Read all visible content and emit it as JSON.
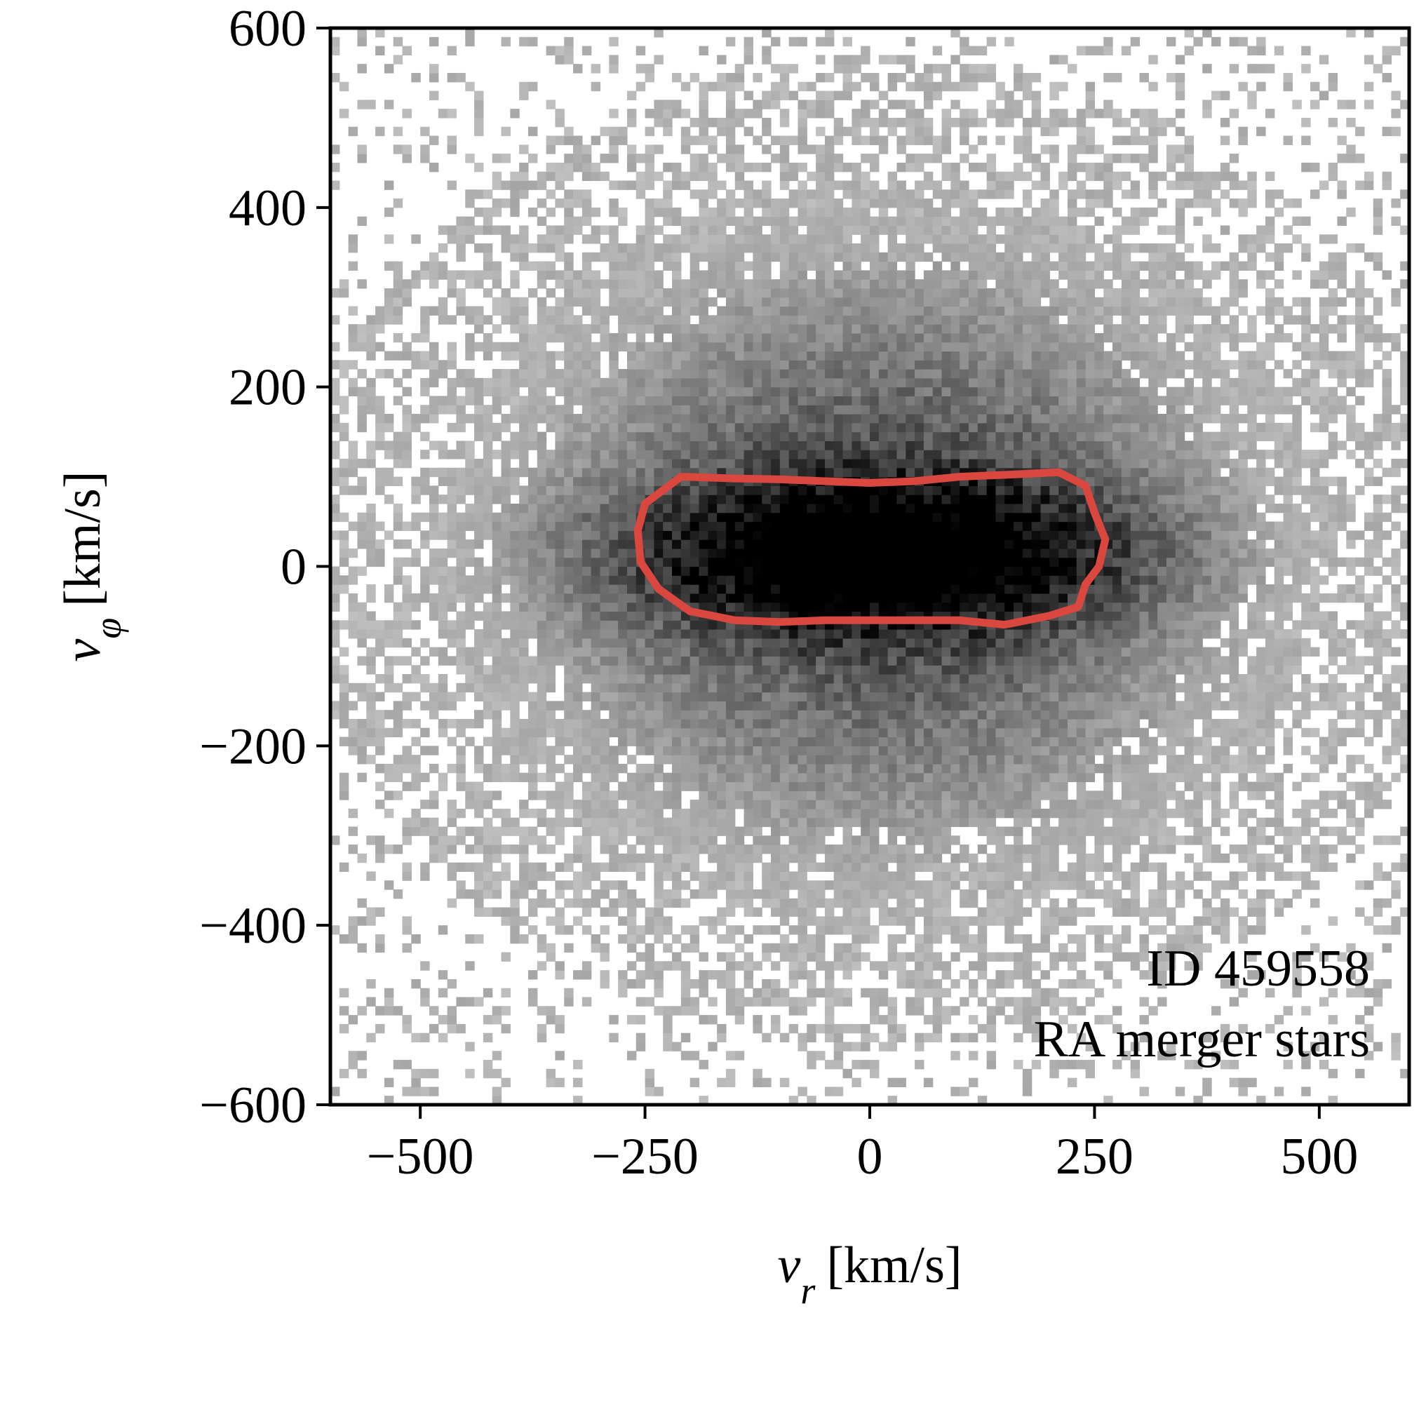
{
  "chart_data": {
    "type": "heatmap",
    "title": "",
    "xlabel": "v_r [km/s]",
    "ylabel": "v_φ [km/s]",
    "xlabel_parts": {
      "symbol": "v",
      "subscript": "r",
      "unit": "[km/s]"
    },
    "ylabel_parts": {
      "symbol": "v",
      "subscript": "φ",
      "unit": "[km/s]"
    },
    "xlim": [
      -600,
      600
    ],
    "ylim": [
      -600,
      600
    ],
    "x_ticks": [
      -500,
      -250,
      0,
      250,
      500
    ],
    "x_tick_labels": [
      "−500",
      "−250",
      "0",
      "250",
      "500"
    ],
    "y_ticks": [
      -600,
      -400,
      -200,
      0,
      200,
      400,
      600
    ],
    "y_tick_labels": [
      "−600",
      "−400",
      "−200",
      "0",
      "200",
      "400",
      "600"
    ],
    "grid": false,
    "colormap": "greys",
    "density_model": {
      "center_vr": 10,
      "center_vphi": 15,
      "core_sigma_vr": 180,
      "core_sigma_vphi": 55,
      "halo_sigma_vr": 270,
      "halo_sigma_vphi": 230,
      "bin_width": 10
    },
    "contour": {
      "color": "#d9473f",
      "vertices": [
        [
          -250,
          70
        ],
        [
          -210,
          100
        ],
        [
          -150,
          98
        ],
        [
          -100,
          97
        ],
        [
          -50,
          95
        ],
        [
          0,
          93
        ],
        [
          50,
          95
        ],
        [
          100,
          100
        ],
        [
          150,
          102
        ],
        [
          210,
          105
        ],
        [
          240,
          90
        ],
        [
          250,
          60
        ],
        [
          262,
          30
        ],
        [
          255,
          0
        ],
        [
          240,
          -20
        ],
        [
          232,
          -45
        ],
        [
          200,
          -55
        ],
        [
          150,
          -65
        ],
        [
          100,
          -60
        ],
        [
          50,
          -60
        ],
        [
          0,
          -60
        ],
        [
          -50,
          -60
        ],
        [
          -100,
          -62
        ],
        [
          -150,
          -60
        ],
        [
          -200,
          -50
        ],
        [
          -235,
          -25
        ],
        [
          -255,
          5
        ],
        [
          -258,
          40
        ]
      ]
    },
    "annotations": [
      "ID 459558",
      "RA merger stars"
    ]
  }
}
